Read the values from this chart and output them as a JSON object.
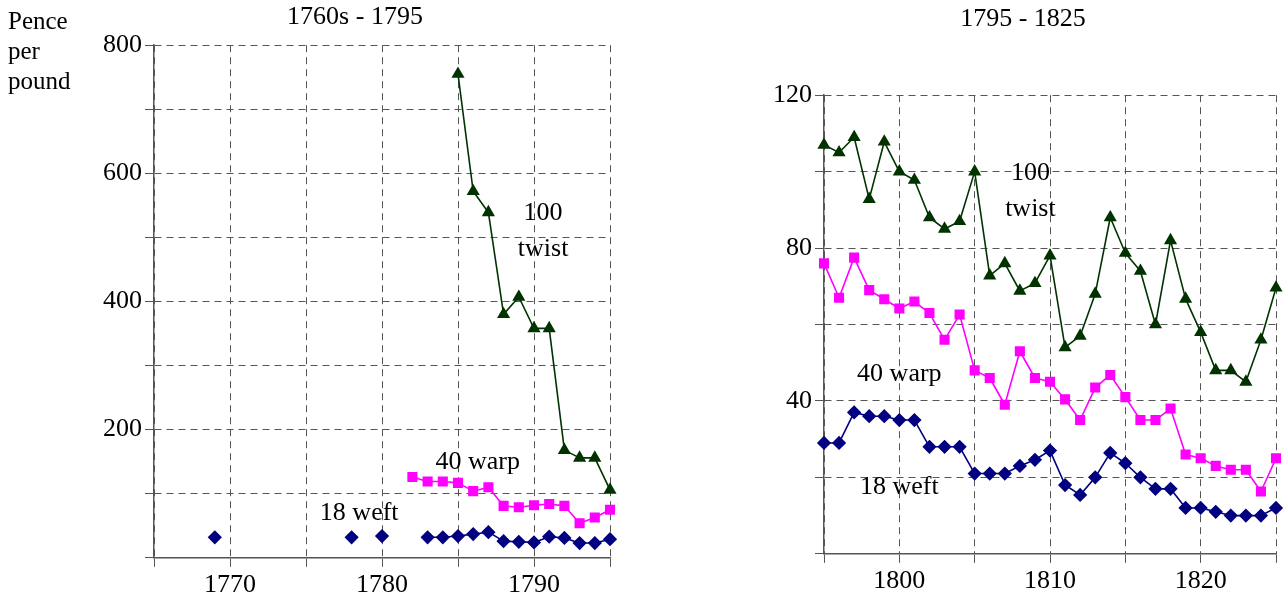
{
  "chart_data": [
    {
      "type": "line",
      "title": "1760s - 1795",
      "ylabel": "Pence per pound",
      "x": [
        1769,
        1770,
        1771,
        1772,
        1773,
        1774,
        1775,
        1776,
        1777,
        1778,
        1779,
        1780,
        1781,
        1782,
        1783,
        1784,
        1785,
        1786,
        1787,
        1788,
        1789,
        1790,
        1791,
        1792,
        1793,
        1794,
        1795
      ],
      "series": [
        {
          "name": "100 twist",
          "color": "#003300",
          "marker": "triangle",
          "values": [
            null,
            null,
            null,
            null,
            null,
            null,
            null,
            null,
            null,
            null,
            null,
            null,
            null,
            null,
            null,
            null,
            755,
            572,
            539,
            380,
            407,
            358,
            358,
            168,
            156,
            156,
            106
          ]
        },
        {
          "name": "40 warp",
          "color": "#ff00ff",
          "marker": "square",
          "values": [
            null,
            null,
            null,
            null,
            null,
            null,
            null,
            null,
            null,
            null,
            null,
            null,
            null,
            126,
            119,
            119,
            117,
            104,
            110,
            81,
            79,
            82,
            84,
            81,
            54,
            63,
            75
          ]
        },
        {
          "name": "18 weft",
          "color": "#000080",
          "marker": "diamond",
          "values": [
            32,
            null,
            null,
            null,
            null,
            null,
            null,
            null,
            null,
            32,
            null,
            34,
            null,
            null,
            32,
            32,
            34,
            37,
            40,
            26,
            25,
            24,
            33,
            31,
            23,
            23,
            29
          ]
        }
      ],
      "xlim": [
        1765,
        1795
      ],
      "xticks": [
        {
          "value": 1765,
          "label": null
        },
        1770,
        {
          "value": 1775,
          "label": null
        },
        1780,
        {
          "value": 1785,
          "label": null
        },
        1790,
        {
          "value": 1795,
          "label": null
        }
      ],
      "ylim": [
        0,
        800
      ],
      "yticks": [
        {
          "value": 0,
          "label": null
        },
        {
          "value": 100,
          "label": null
        },
        200,
        {
          "value": 300,
          "label": null
        },
        400,
        {
          "value": 500,
          "label": null
        },
        600,
        {
          "value": 700,
          "label": null
        },
        800
      ],
      "grid": true,
      "legend": false,
      "line_style": "solid"
    },
    {
      "type": "line",
      "title": "1795 - 1825",
      "x": [
        1795,
        1796,
        1797,
        1798,
        1799,
        1800,
        1801,
        1802,
        1803,
        1804,
        1805,
        1806,
        1807,
        1808,
        1809,
        1810,
        1811,
        1812,
        1813,
        1814,
        1815,
        1816,
        1817,
        1818,
        1819,
        1820,
        1821,
        1822,
        1823,
        1824,
        1825
      ],
      "series": [
        {
          "name": "100 twist",
          "color": "#003300",
          "marker": "triangle",
          "values": [
            107,
            105,
            109,
            92.8,
            107.8,
            100,
            97.8,
            88,
            85,
            87,
            100,
            72.8,
            76,
            68.8,
            70.8,
            78,
            54,
            57,
            68,
            88,
            78.7,
            74,
            60,
            82,
            66.7,
            58,
            48,
            48,
            45,
            56,
            69.6
          ]
        },
        {
          "name": "40 warp",
          "color": "#ff00ff",
          "marker": "square",
          "values": [
            76,
            67,
            77.5,
            69,
            66.6,
            64.2,
            66,
            63,
            56,
            62.6,
            48,
            46,
            39,
            53,
            46,
            45,
            40.4,
            35,
            43.5,
            46.8,
            41,
            35,
            35,
            38,
            26,
            25,
            23,
            22,
            22,
            16.3,
            25
          ]
        },
        {
          "name": "18 weft",
          "color": "#000080",
          "marker": "diamond",
          "values": [
            29,
            29,
            37,
            36,
            36,
            35,
            35,
            28,
            28,
            28,
            21,
            21,
            21,
            23,
            24.6,
            27,
            18,
            15.4,
            20,
            26.4,
            23.7,
            20,
            17,
            17,
            12,
            12,
            11,
            10,
            10,
            10,
            12
          ]
        }
      ],
      "xlim": [
        1795,
        1825
      ],
      "xticks": [
        {
          "value": 1795,
          "label": null
        },
        1800,
        {
          "value": 1805,
          "label": null
        },
        1810,
        {
          "value": 1815,
          "label": null
        },
        1820,
        {
          "value": 1825,
          "label": null
        }
      ],
      "ylim": [
        0,
        120
      ],
      "yticks": [
        {
          "value": 0,
          "label": null
        },
        {
          "value": 20,
          "label": null
        },
        40,
        {
          "value": 60,
          "label": null
        },
        80,
        {
          "value": 100,
          "label": null
        },
        120
      ],
      "grid": true,
      "legend": false,
      "line_style": "solid"
    }
  ]
}
